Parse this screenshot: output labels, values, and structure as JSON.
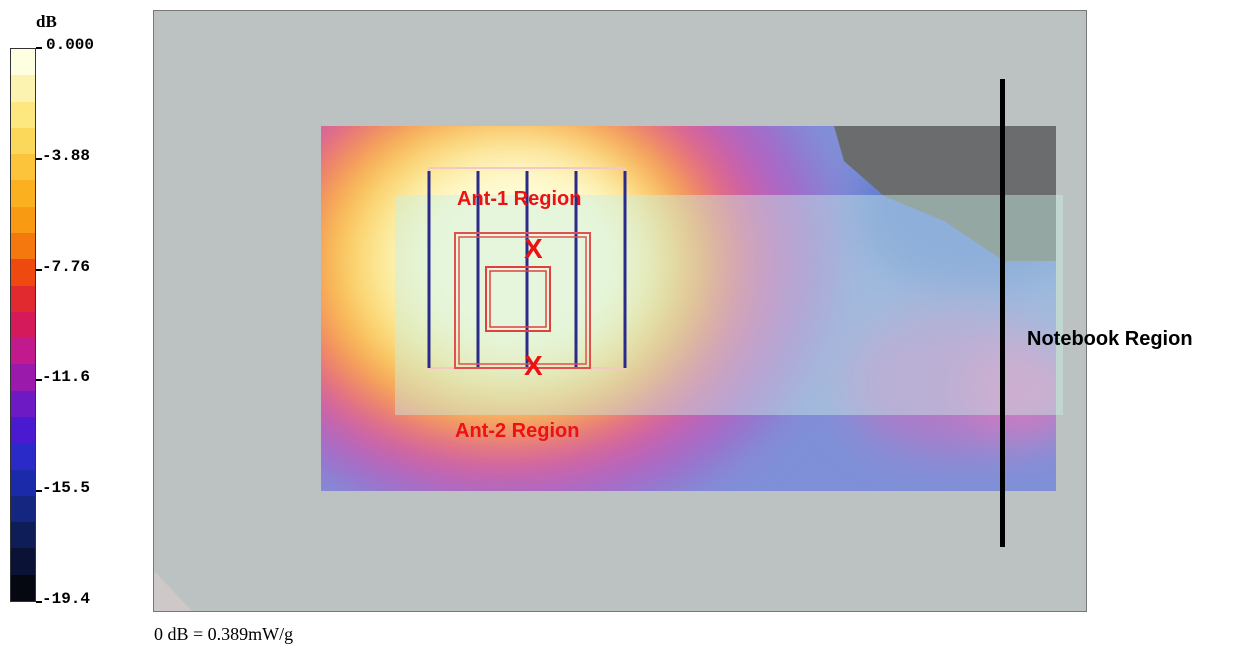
{
  "legend": {
    "unit": "dB",
    "ticks": [
      "0.000",
      "-3.88",
      "-7.76",
      "-11.6",
      "-15.5",
      "-19.4"
    ],
    "colors": [
      "#fefee0",
      "#fdf3b0",
      "#fde880",
      "#fcd85a",
      "#fbc43a",
      "#fbb020",
      "#f89a12",
      "#f4780e",
      "#ee4a10",
      "#e02a30",
      "#d41a5a",
      "#c01a8c",
      "#9a1aac",
      "#6e1ac4",
      "#4a1ad0",
      "#2a2ac8",
      "#1a2aa8",
      "#142680",
      "#0e1c58",
      "#0a1236",
      "#050810"
    ]
  },
  "footnote": "0 dB = 0.389mW/g",
  "labels": {
    "ant1": "Ant-1 Region",
    "ant2": "Ant-2 Region",
    "notebook": "Notebook Region",
    "marker": "X"
  }
}
